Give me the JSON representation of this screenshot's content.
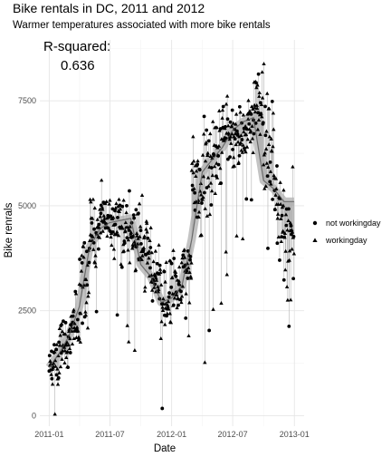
{
  "chart_data": {
    "type": "scatter",
    "title": "Bike rentals in DC, 2011 and 2012",
    "subtitle": "Warmer temperatures associated with more bike rentals",
    "xlabel": "Date",
    "ylabel": "Bike renrals",
    "annotation_label": "R-squared:",
    "annotation_value": "0.636",
    "x_ticks": [
      "2011-01",
      "2011-07",
      "2012-01",
      "2012-07",
      "2013-01"
    ],
    "y_ticks": [
      0,
      2500,
      5000,
      7500
    ],
    "xlim": [
      "2010-12-04",
      "2013-01-30"
    ],
    "ylim": [
      -250,
      8950
    ],
    "grid": true,
    "legend_position": "right",
    "series": [
      {
        "name": "not workingday",
        "shape": "circle"
      },
      {
        "name": "workingday",
        "shape": "triangle"
      }
    ],
    "trend_points": [
      [
        "2011-01-01",
        1150
      ],
      [
        "2011-02-01",
        1500
      ],
      [
        "2011-03-01",
        1900
      ],
      [
        "2011-04-01",
        2600
      ],
      [
        "2011-05-01",
        4000
      ],
      [
        "2011-06-01",
        4450
      ],
      [
        "2011-07-01",
        4600
      ],
      [
        "2011-08-01",
        4650
      ],
      [
        "2011-09-01",
        4700
      ],
      [
        "2011-10-01",
        3600
      ],
      [
        "2011-11-01",
        3300
      ],
      [
        "2011-12-01",
        2700
      ],
      [
        "2012-01-01",
        2800
      ],
      [
        "2012-02-01",
        3100
      ],
      [
        "2012-03-01",
        4200
      ],
      [
        "2012-04-01",
        5800
      ],
      [
        "2012-05-01",
        6100
      ],
      [
        "2012-06-01",
        6400
      ],
      [
        "2012-07-01",
        6800
      ],
      [
        "2012-08-01",
        7000
      ],
      [
        "2012-09-01",
        7100
      ],
      [
        "2012-10-01",
        5600
      ],
      [
        "2012-11-01",
        5400
      ],
      [
        "2012-12-01",
        5100
      ],
      [
        "2012-12-31",
        5100
      ]
    ],
    "monthly_profile": [
      {
        "month": "2011-01",
        "mean": 1230,
        "spread": 500
      },
      {
        "month": "2011-02",
        "mean": 1720,
        "spread": 600
      },
      {
        "month": "2011-03",
        "mean": 2060,
        "spread": 800
      },
      {
        "month": "2011-04",
        "mean": 3160,
        "spread": 1200
      },
      {
        "month": "2011-05",
        "mean": 4380,
        "spread": 800
      },
      {
        "month": "2011-06",
        "mean": 4780,
        "spread": 700
      },
      {
        "month": "2011-07",
        "mean": 4560,
        "spread": 700
      },
      {
        "month": "2011-08",
        "mean": 4410,
        "spread": 800
      },
      {
        "month": "2011-09",
        "mean": 4250,
        "spread": 1000
      },
      {
        "month": "2011-10",
        "mean": 3980,
        "spread": 1000
      },
      {
        "month": "2011-11",
        "mean": 3400,
        "spread": 700
      },
      {
        "month": "2011-12",
        "mean": 2820,
        "spread": 800
      },
      {
        "month": "2012-01",
        "mean": 3120,
        "spread": 800
      },
      {
        "month": "2012-02",
        "mean": 3560,
        "spread": 700
      },
      {
        "month": "2012-03",
        "mean": 5320,
        "spread": 1300
      },
      {
        "month": "2012-04",
        "mean": 5810,
        "spread": 1200
      },
      {
        "month": "2012-05",
        "mean": 6320,
        "spread": 1000
      },
      {
        "month": "2012-06",
        "mean": 6760,
        "spread": 900
      },
      {
        "month": "2012-07",
        "mean": 6570,
        "spread": 700
      },
      {
        "month": "2012-08",
        "mean": 6920,
        "spread": 700
      },
      {
        "month": "2012-09",
        "mean": 7290,
        "spread": 900
      },
      {
        "month": "2012-10",
        "mean": 6410,
        "spread": 1500
      },
      {
        "month": "2012-11",
        "mean": 5090,
        "spread": 1000
      },
      {
        "month": "2012-12",
        "mean": 3990,
        "spread": 1500
      }
    ]
  }
}
